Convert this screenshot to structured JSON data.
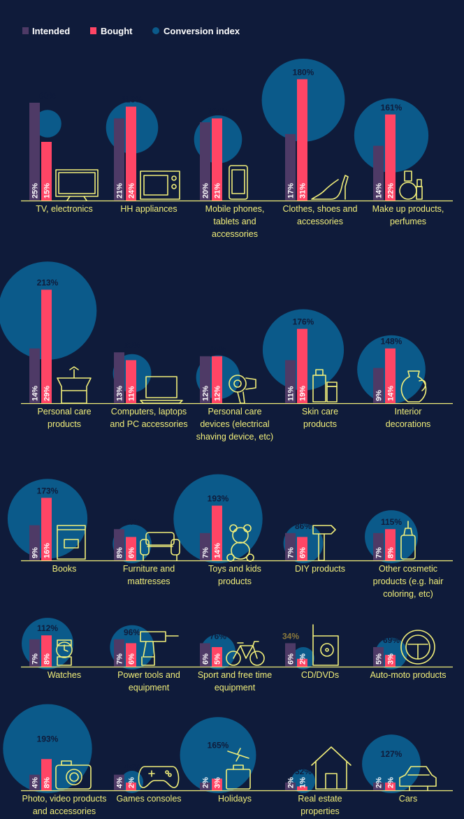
{
  "chart_data": {
    "type": "bar",
    "legend": [
      {
        "name": "Intended",
        "color": "#4e3a66"
      },
      {
        "name": "Bought",
        "color": "#ff4565"
      },
      {
        "name": "Conversion index",
        "color": "#0b5a8a"
      }
    ],
    "highlight_color": "#8c7a3c",
    "categories": [
      {
        "label": [
          "TV, electronics"
        ],
        "intended": 25,
        "bought": 15,
        "index": "60%",
        "icon": "tv-icon"
      },
      {
        "label": [
          "HH appliances"
        ],
        "intended": 21,
        "bought": 24,
        "index": "113%",
        "icon": "microwave-icon"
      },
      {
        "label": [
          "Mobile phones,",
          "tablets and",
          "accessories"
        ],
        "intended": 20,
        "bought": 21,
        "index": "104%",
        "icon": "phone-icon"
      },
      {
        "label": [
          "Clothes, shoes and",
          "accessories"
        ],
        "intended": 17,
        "bought": 31,
        "index": "180%",
        "icon": "high-heel-icon"
      },
      {
        "label": [
          "Make up products,",
          "perfumes"
        ],
        "intended": 14,
        "bought": 22,
        "index": "161%",
        "icon": "perfume-icon"
      },
      {
        "label": [
          "Personal care",
          "products"
        ],
        "intended": 14,
        "bought": 29,
        "index": "213%",
        "icon": "bathrobe-icon"
      },
      {
        "label": [
          "Computers, laptops",
          "and PC accessories"
        ],
        "intended": 13,
        "bought": 11,
        "index": "83%",
        "icon": "laptop-icon"
      },
      {
        "label": [
          "Personal care",
          "devices (electrical",
          "shaving device, etc)"
        ],
        "intended": 12,
        "bought": 12,
        "index": "95%",
        "icon": "hair-dryer-icon"
      },
      {
        "label": [
          "Skin care",
          "products"
        ],
        "intended": 11,
        "bought": 19,
        "index": "176%",
        "icon": "cream-bottle-icon"
      },
      {
        "label": [
          "Interior",
          "decorations"
        ],
        "intended": 9,
        "bought": 14,
        "index": "148%",
        "icon": "vase-icon"
      },
      {
        "label": [
          "Books"
        ],
        "intended": 9,
        "bought": 16,
        "index": "173%",
        "icon": "book-icon"
      },
      {
        "label": [
          "Furniture and",
          "mattresses"
        ],
        "intended": 8,
        "bought": 6,
        "index": "84%",
        "icon": "sofa-icon"
      },
      {
        "label": [
          "Toys and kids",
          "products"
        ],
        "intended": 7,
        "bought": 14,
        "index": "193%",
        "icon": "teddy-bear-icon"
      },
      {
        "label": [
          "DIY products"
        ],
        "intended": 7,
        "bought": 6,
        "index": "86%",
        "icon": "hammer-icon"
      },
      {
        "label": [
          "Other cosmetic",
          "products (e.g. hair",
          "coloring, etc)"
        ],
        "intended": 7,
        "bought": 8,
        "index": "115%",
        "icon": "hair-dye-bottle-icon"
      },
      {
        "label": [
          "Watches"
        ],
        "intended": 7,
        "bought": 8,
        "index": "112%",
        "icon": "watch-icon"
      },
      {
        "label": [
          "Power tools and",
          "equipment"
        ],
        "intended": 7,
        "bought": 6,
        "index": "96%",
        "icon": "drill-icon"
      },
      {
        "label": [
          "Sport and free time",
          "equipment"
        ],
        "intended": 6,
        "bought": 5,
        "index": "76%",
        "icon": "bicycle-icon"
      },
      {
        "label": [
          "CD/DVDs"
        ],
        "intended": 6,
        "bought": 2,
        "index": "34%",
        "icon": "dvd-case-icon",
        "highlight": true
      },
      {
        "label": [
          "Auto-moto products"
        ],
        "intended": 5,
        "bought": 3,
        "index": "69%",
        "icon": "steering-wheel-icon"
      },
      {
        "label": [
          "Photo, video products",
          "and accessories"
        ],
        "intended": 4,
        "bought": 8,
        "index": "193%",
        "icon": "camera-icon"
      },
      {
        "label": [
          "Games consoles"
        ],
        "intended": 4,
        "bought": 2,
        "index": "45%",
        "icon": "gamepad-icon"
      },
      {
        "label": [
          "Holidays"
        ],
        "intended": 2,
        "bought": 3,
        "index": "165%",
        "icon": "suitcase-plane-icon"
      },
      {
        "label": [
          "Real estate",
          "properties"
        ],
        "intended": 2,
        "bought": 1,
        "index": "52%",
        "icon": "house-icon"
      },
      {
        "label": [
          "Cars"
        ],
        "intended": 2,
        "bought": 2,
        "index": "127%",
        "icon": "car-icon"
      }
    ]
  }
}
